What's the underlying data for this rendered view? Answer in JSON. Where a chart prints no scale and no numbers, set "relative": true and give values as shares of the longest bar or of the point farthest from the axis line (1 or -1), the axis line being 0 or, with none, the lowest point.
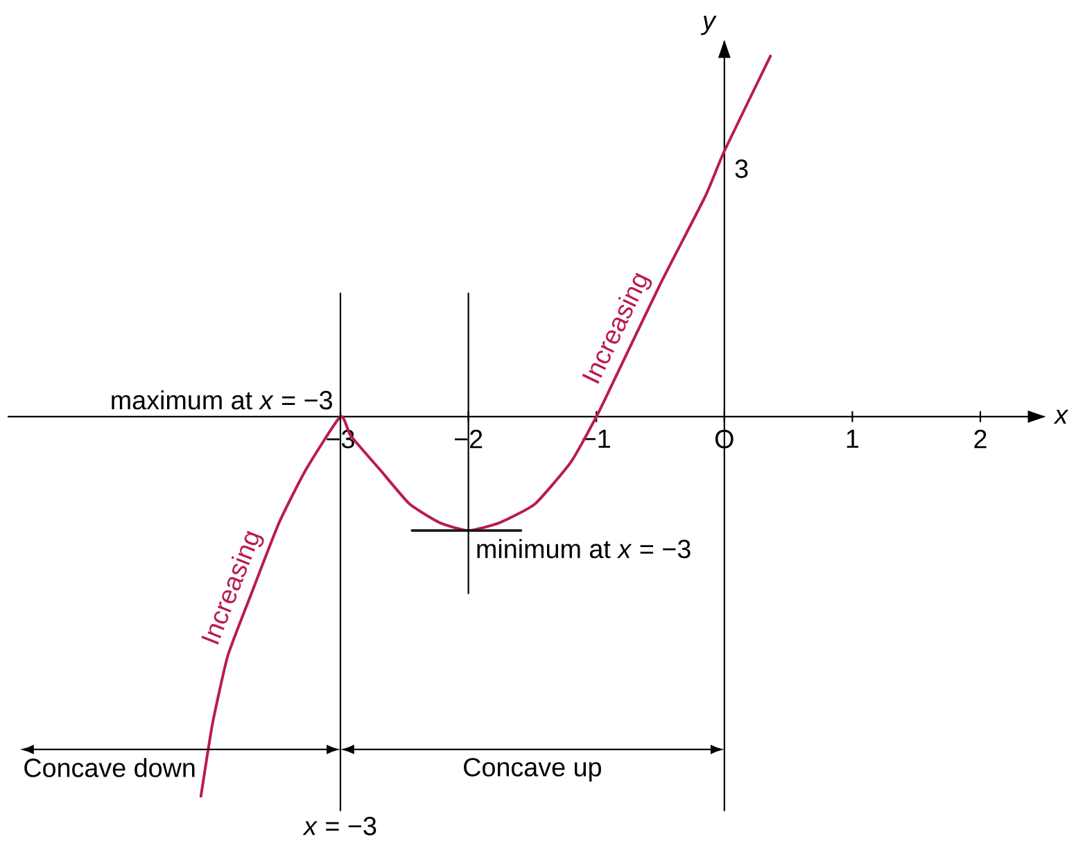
{
  "chart_data": {
    "type": "line",
    "xlabel": "x",
    "ylabel": "y",
    "relative": true,
    "xlim": [
      -5.6,
      2.5
    ],
    "xticks": [
      {
        "value": -3,
        "label": "−3"
      },
      {
        "value": -2,
        "label": "−2"
      },
      {
        "value": -1,
        "label": "−1"
      },
      {
        "value": 0,
        "label": "O"
      },
      {
        "value": 1,
        "label": "1"
      },
      {
        "value": 2,
        "label": "2"
      }
    ],
    "series": [
      {
        "color": "#b91c4e",
        "x": [
          -4.09,
          -4.0,
          -3.88,
          -3.7,
          -3.48,
          -3.27,
          -3,
          -2.92,
          -2.69,
          -2.46,
          -2.22,
          -2,
          -1.76,
          -1.48,
          -1.2,
          -1,
          -0.87,
          -0.5,
          -0.15,
          0,
          0.36
        ],
        "values": [
          -1.0,
          -0.81,
          -0.63,
          -0.47,
          -0.28,
          -0.14,
          0,
          -0.05,
          -0.14,
          -0.23,
          -0.28,
          -0.3,
          -0.28,
          -0.23,
          -0.12,
          0,
          0.09,
          0.35,
          0.58,
          0.7,
          0.95
        ]
      },
      {
        "color": "#1a1a1a",
        "x": [
          -2.44,
          -1.59
        ],
        "values": [
          -0.3,
          -0.3
        ]
      }
    ],
    "ref_lines": [
      {
        "axis": "x",
        "value": -3,
        "label": "*x* = −3"
      },
      {
        "axis": "x",
        "value": -2
      }
    ],
    "annotations": [
      {
        "text": "maximum at *x* = −3",
        "x": -3,
        "y": 0
      },
      {
        "text": "minimum at *x* = −3",
        "x": -2,
        "y": -0.3
      },
      {
        "text": "Increasing",
        "x": -3.7,
        "y": -0.47
      },
      {
        "text": "Increasing",
        "x": -0.7,
        "y": 0.21
      },
      {
        "text": "3",
        "x": 0,
        "y": 0.7
      },
      "Concave down",
      "Concave up"
    ]
  }
}
